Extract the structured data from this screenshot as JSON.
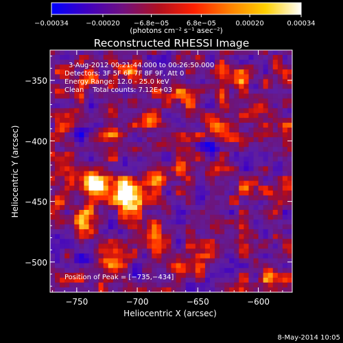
{
  "chart_data": {
    "type": "heatmap",
    "title": "Reconstructed RHESSI Image",
    "xlabel": "Heliocentric X (arcsec)",
    "ylabel": "Heliocentric Y (arcsec)",
    "xlim": [
      -772,
      -572
    ],
    "ylim": [
      -525,
      -325
    ],
    "xticks": [
      -750,
      -700,
      -650,
      -600
    ],
    "yticks": [
      -350,
      -400,
      -450,
      -500
    ],
    "xtick_labels": [
      "−750",
      "−700",
      "−650",
      "−600"
    ],
    "ytick_labels": [
      "−350",
      "−400",
      "−450",
      "−500"
    ],
    "colorbar": {
      "range": [
        -0.00034,
        0.00034
      ],
      "tick_labels": [
        "−0.00034",
        "−0.00020",
        "−6.8e−05",
        "6.8e−05",
        "0.00020",
        "0.00034"
      ],
      "units_label": "(photons cm⁻² s⁻¹ asec⁻²)",
      "colormap": [
        "#0000ff",
        "#4000c0",
        "#701080",
        "#b01020",
        "#ff2000",
        "#ff8000",
        "#ffd000",
        "#ffffff"
      ]
    },
    "annotations": {
      "time": "3-Aug-2012 00:21:44.000 to 00:26:50.000",
      "detectors": "Detectors: 3F 5F 6F 7F 8F 9F, Att 0",
      "energy": "Energy Range: 12.0 - 25.0 keV",
      "clean": "Clean    Total counts: 7.12E+03",
      "peak": "Position of Peak = [−735,−434]"
    },
    "peak_position": [
      -735,
      -434
    ],
    "total_counts": 7120,
    "energy_range_kev": [
      12.0,
      25.0
    ],
    "background_level": 0.0
  },
  "footer": {
    "timestamp": "8-May-2014 10:05"
  }
}
